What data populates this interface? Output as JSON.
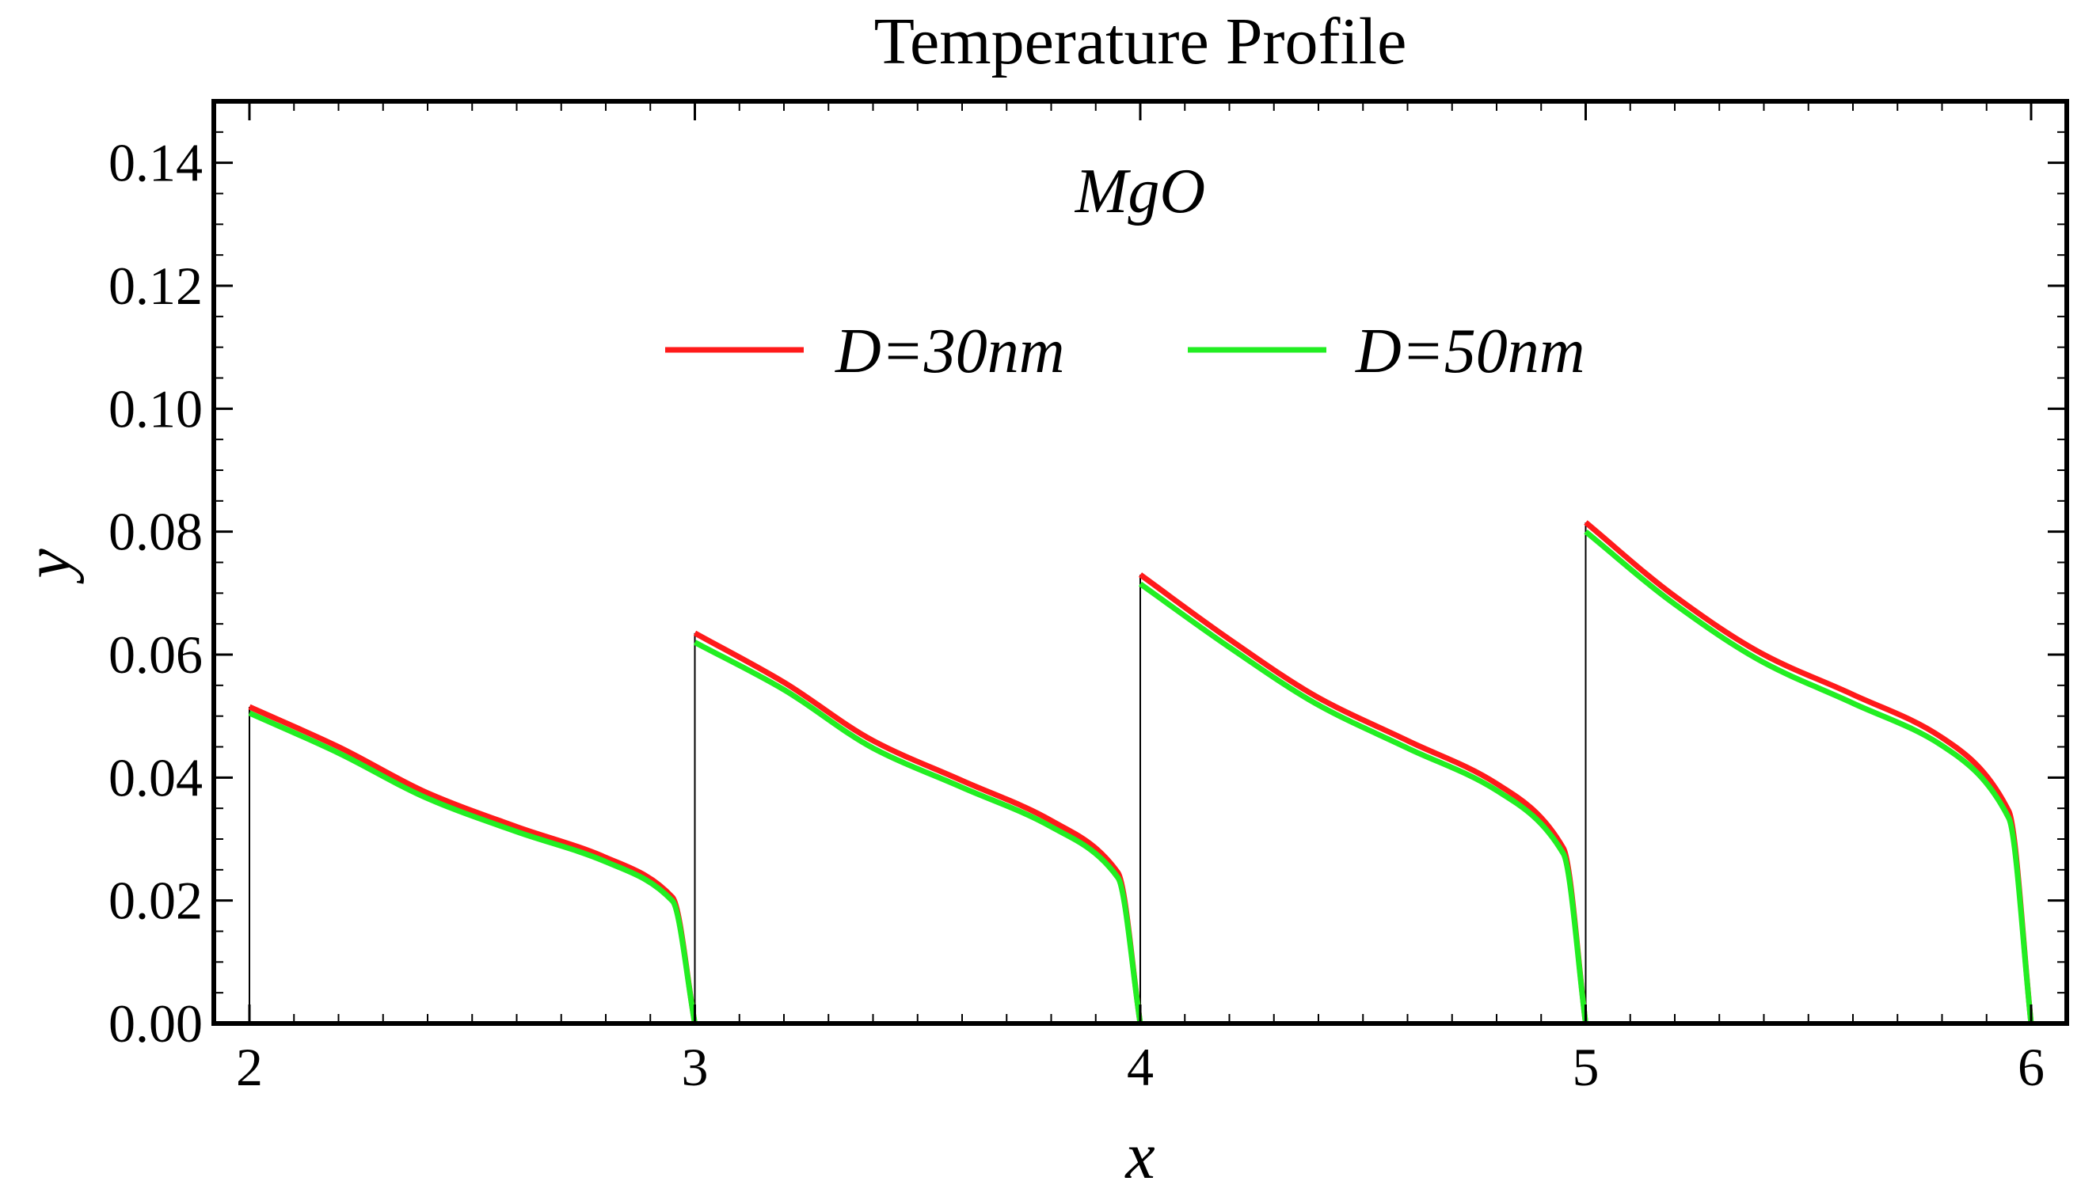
{
  "chart_data": {
    "type": "line",
    "title": "Temperature Profile",
    "xlabel": "x",
    "ylabel": "y",
    "xlim": [
      1.92,
      6.08
    ],
    "ylim": [
      0,
      0.15
    ],
    "x_ticks": [
      2,
      3,
      4,
      5,
      6
    ],
    "x_tick_labels": [
      "2",
      "3",
      "4",
      "5",
      "6"
    ],
    "y_ticks": [
      0,
      0.02,
      0.04,
      0.06,
      0.08,
      0.1,
      0.12,
      0.14
    ],
    "y_tick_labels": [
      "0.00",
      "0.02",
      "0.04",
      "0.06",
      "0.08",
      "0.10",
      "0.12",
      "0.14"
    ],
    "annotation": "MgO",
    "legend_position": "top-center",
    "vertical_markers": [
      2,
      3,
      4,
      5
    ],
    "series": [
      {
        "name": "D=30nm",
        "color": "#ff1a1a",
        "segments": [
          {
            "x_start": 2,
            "x_end": 3,
            "peak": 0.0515,
            "y": [
              0.045,
              0.0375,
              0.032,
              0.027,
              0.0205,
              0.0
            ]
          },
          {
            "x_start": 3,
            "x_end": 4,
            "peak": 0.0635,
            "y": [
              0.0555,
              0.046,
              0.0395,
              0.033,
              0.0245,
              0.0
            ]
          },
          {
            "x_start": 4,
            "x_end": 5,
            "peak": 0.073,
            "y": [
              0.0625,
              0.053,
              0.046,
              0.039,
              0.0285,
              0.0
            ]
          },
          {
            "x_start": 5,
            "x_end": 6,
            "peak": 0.0815,
            "y": [
              0.0695,
              0.06,
              0.0535,
              0.0465,
              0.0345,
              0.0
            ]
          }
        ]
      },
      {
        "name": "D=50nm",
        "color": "#22ee22",
        "segments": [
          {
            "x_start": 2,
            "x_end": 3,
            "peak": 0.0505,
            "y": [
              0.044,
              0.0366,
              0.0312,
              0.0263,
              0.0199,
              0.0
            ]
          },
          {
            "x_start": 3,
            "x_end": 4,
            "peak": 0.062,
            "y": [
              0.0543,
              0.0448,
              0.0384,
              0.032,
              0.0237,
              0.0
            ]
          },
          {
            "x_start": 4,
            "x_end": 5,
            "peak": 0.0715,
            "y": [
              0.0612,
              0.0518,
              0.0448,
              0.0379,
              0.0276,
              0.0
            ]
          },
          {
            "x_start": 5,
            "x_end": 6,
            "peak": 0.08,
            "y": [
              0.0682,
              0.0587,
              0.0521,
              0.0452,
              0.0334,
              0.0
            ]
          }
        ]
      }
    ]
  }
}
